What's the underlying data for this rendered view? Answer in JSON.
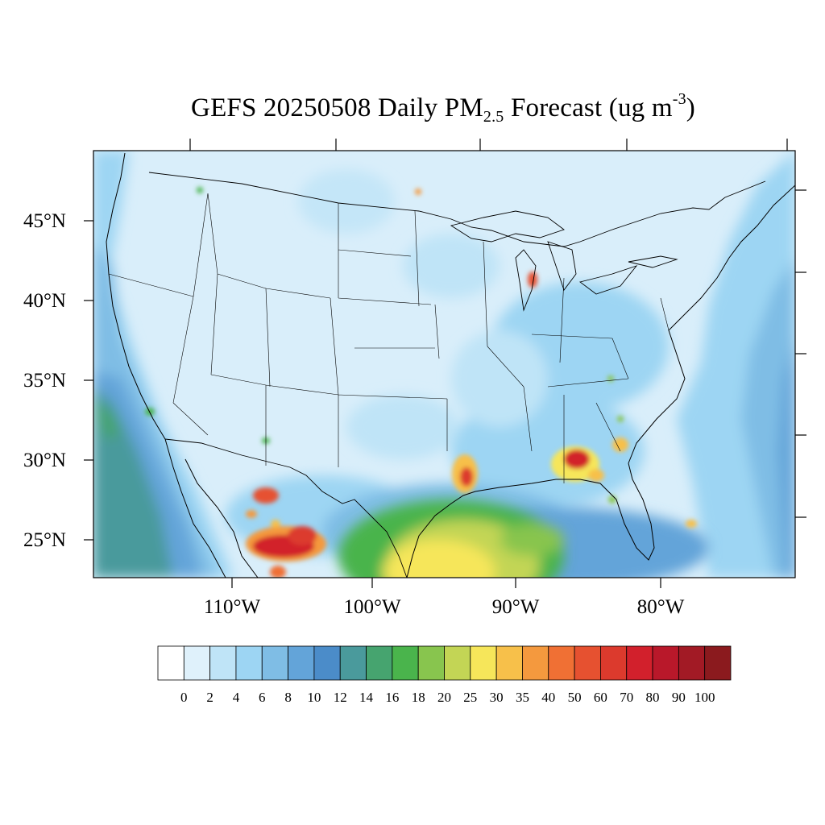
{
  "title": {
    "prefix": "GEFS 20250508 Daily PM",
    "subscript": "2.5",
    "middle": " Forecast (ug m",
    "superscript": "-3",
    "suffix": ")"
  },
  "map": {
    "projection": "Lambert Conformal over the contiguous United States",
    "variable": "Daily PM2.5",
    "units": "ug m-3",
    "lat_labels": [
      "45°N",
      "40°N",
      "35°N",
      "30°N",
      "25°N"
    ],
    "lon_labels": [
      "110°W",
      "100°W",
      "90°W",
      "80°W"
    ],
    "background_color": "#d9eefa",
    "features": [
      "coastlines",
      "state-borders",
      "international-borders",
      "great-lakes"
    ],
    "hotspots": [
      {
        "region": "Northern Mexico (Chihuahua)",
        "level": "80-100"
      },
      {
        "region": "Western Mexico (Sonora/Sinaloa)",
        "level": "60-80"
      },
      {
        "region": "Western Gulf of Mexico / South Texas coast",
        "level": "25-30"
      },
      {
        "region": "Southern Louisiana",
        "level": "50-70"
      },
      {
        "region": "Florida Panhandle / Southern Alabama",
        "level": "50-80"
      },
      {
        "region": "Lake Michigan shore",
        "level": "40-50"
      },
      {
        "region": "Northern Georgia coast",
        "level": "25-35"
      },
      {
        "region": "Bahamas",
        "level": "25-35"
      }
    ]
  },
  "colorbar": {
    "labels": [
      "0",
      "2",
      "4",
      "6",
      "8",
      "10",
      "12",
      "14",
      "16",
      "18",
      "20",
      "25",
      "30",
      "35",
      "40",
      "50",
      "60",
      "70",
      "80",
      "90",
      "100"
    ],
    "colors": [
      "#ffffff",
      "#dff1fb",
      "#bfe4f7",
      "#9dd5f3",
      "#7fbde5",
      "#63a4d9",
      "#4b8cc9",
      "#4a9a9c",
      "#46a46f",
      "#4ab44c",
      "#88c54e",
      "#c3d555",
      "#f6e65a",
      "#f7c04a",
      "#f4993e",
      "#f07034",
      "#e65130",
      "#dc3a2d",
      "#d2202c",
      "#b9182a",
      "#a21a25",
      "#8b1a1e"
    ]
  }
}
